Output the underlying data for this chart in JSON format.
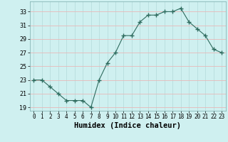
{
  "x": [
    0,
    1,
    2,
    3,
    4,
    5,
    6,
    7,
    8,
    9,
    10,
    11,
    12,
    13,
    14,
    15,
    16,
    17,
    18,
    19,
    20,
    21,
    22,
    23
  ],
  "y": [
    23,
    23,
    22,
    21,
    20,
    20,
    20,
    19,
    23,
    25.5,
    27,
    29.5,
    29.5,
    31.5,
    32.5,
    32.5,
    33,
    33,
    33.5,
    31.5,
    30.5,
    29.5,
    27.5,
    27
  ],
  "line_color": "#2e6b5e",
  "marker": "+",
  "marker_size": 4,
  "bg_color": "#cff0f0",
  "grid_h_color": "#e8b8b8",
  "grid_v_color": "#b8dede",
  "xlabel": "Humidex (Indice chaleur)",
  "ylabel": "",
  "ylim": [
    18.5,
    34.5
  ],
  "xlim": [
    -0.5,
    23.5
  ],
  "yticks": [
    19,
    21,
    23,
    25,
    27,
    29,
    31,
    33
  ],
  "xticks": [
    0,
    1,
    2,
    3,
    4,
    5,
    6,
    7,
    8,
    9,
    10,
    11,
    12,
    13,
    14,
    15,
    16,
    17,
    18,
    19,
    20,
    21,
    22,
    23
  ],
  "title_fontsize": 7,
  "xlabel_fontsize": 7.5,
  "tick_fontsize": 6
}
